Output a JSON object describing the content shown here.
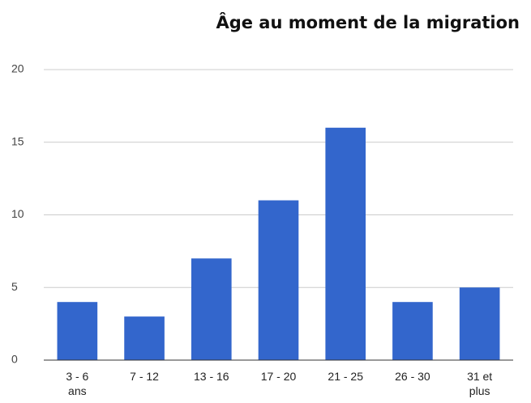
{
  "chart_data": {
    "type": "bar",
    "title": "Âge au moment de la migration",
    "categories": [
      "3 - 6 ans",
      "7 - 12",
      "13 - 16",
      "17 - 20",
      "21 - 25",
      "26 - 30",
      "31 et plus"
    ],
    "values": [
      4,
      3,
      7,
      11,
      16,
      4,
      5
    ],
    "color": "#3366cc",
    "ylim": [
      0,
      20
    ],
    "yticks": [
      0,
      5,
      10,
      15,
      20
    ],
    "grid": true
  }
}
